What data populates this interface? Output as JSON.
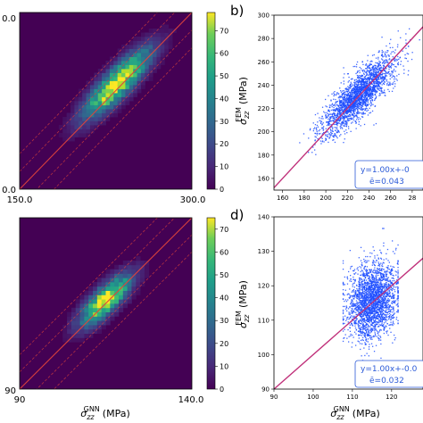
{
  "colors": {
    "viridis_low": "#440154",
    "viridis_high": "#fde725",
    "scatter_point": "#1f4fff",
    "fit_line": "#c0307a",
    "annotation_text": "#2b5ad8",
    "reference_line": "#e0443c"
  },
  "chart_data": [
    {
      "id": "top-heatmap",
      "type": "heatmap",
      "xlim": [
        150.0,
        300.0
      ],
      "ylim": [
        150.0,
        300.0
      ],
      "visible_tick_labels": {
        "x_left": "150.0",
        "x_right": "300.0",
        "y_top": "0.0",
        "y_bottom": "0.0"
      },
      "density_peak_center": [
        235,
        240
      ],
      "colorbar": {
        "ticks": [
          "0",
          "10",
          "20",
          "30",
          "40",
          "50",
          "60",
          "70"
        ],
        "max": 78
      },
      "reference_lines": "solid identity line y=x with dashed parallel offset bands"
    },
    {
      "id": "top-scatter",
      "panel_label": "b)",
      "type": "scatter",
      "xlim": [
        152,
        290
      ],
      "ylim": [
        150,
        300
      ],
      "x_ticks": [
        "160",
        "180",
        "200",
        "220",
        "240",
        "260",
        "28"
      ],
      "y_ticks": [
        "160",
        "180",
        "200",
        "220",
        "240",
        "260",
        "280",
        "300"
      ],
      "ylabel": {
        "sym": "σ",
        "sub": "zz",
        "sup": "FEM",
        "unit": "(MPa)"
      },
      "cluster": {
        "center": [
          230,
          232
        ],
        "std_along": 22,
        "std_across": 7
      },
      "fit": {
        "slope": 1.0
      },
      "annotation_lines": [
        "y=1.00x+-0",
        "ē=0.043"
      ]
    },
    {
      "id": "bottom-heatmap",
      "type": "heatmap",
      "xlim": [
        90,
        140.0
      ],
      "ylim": [
        90,
        140.0
      ],
      "visible_tick_labels": {
        "x_left": "90",
        "x_right": "140.0",
        "y_bottom": "90"
      },
      "density_peak_center": [
        115,
        116
      ],
      "xlabel": {
        "sym": "σ",
        "sub": "zz",
        "sup": "GNN",
        "unit": "(MPa)"
      },
      "colorbar": {
        "ticks": [
          "0",
          "10",
          "20",
          "30",
          "40",
          "50",
          "60",
          "70"
        ],
        "max": 75
      },
      "reference_lines": "solid identity line y=x with dashed parallel offset bands"
    },
    {
      "id": "bottom-scatter",
      "panel_label": "d)",
      "type": "scatter",
      "xlim": [
        90,
        128
      ],
      "ylim": [
        90,
        140
      ],
      "x_ticks": [
        "90",
        "100",
        "110",
        "120"
      ],
      "y_ticks": [
        "90",
        "100",
        "110",
        "120",
        "130",
        "140"
      ],
      "ylabel": {
        "sym": "σ",
        "sub": "zz",
        "sup": "FEM",
        "unit": "(MPa)"
      },
      "xlabel": {
        "sym": "σ",
        "sub": "zz",
        "sup": "GNN",
        "unit": "(MPa)"
      },
      "cluster": {
        "center": [
          115,
          116
        ],
        "std_x": 3.2,
        "std_y": 5.5
      },
      "fit": {
        "slope": 1.0
      },
      "annotation_lines": [
        "y=1.00x+-0.0",
        "ē=0.032"
      ]
    }
  ]
}
